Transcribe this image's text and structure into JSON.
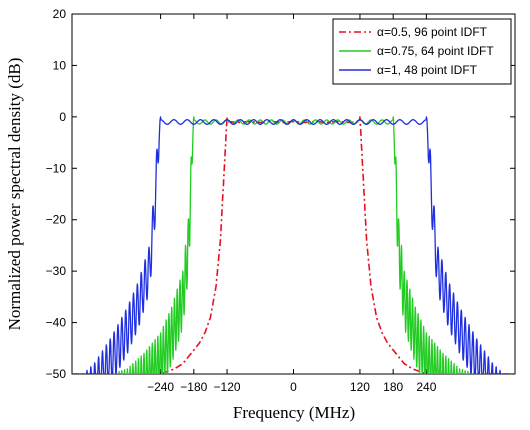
{
  "chart_data": {
    "type": "line",
    "title": "",
    "xlabel": "Frequency (MHz)",
    "ylabel": "Normalized power spectral density (dB)",
    "xlim": [
      -400,
      400
    ],
    "ylim": [
      -50,
      20
    ],
    "x_tick_labels": [
      "-240",
      "-180",
      "-120",
      "0",
      "120",
      "180",
      "240"
    ],
    "x_ticks": [
      -240,
      -180,
      -120,
      0,
      120,
      180,
      240
    ],
    "y_ticks": [
      20,
      10,
      0,
      -10,
      -20,
      -30,
      -40,
      -50
    ],
    "y_tick_labels": [
      "20",
      "10",
      "0",
      "−10",
      "−20",
      "−30",
      "−40",
      "−50"
    ],
    "grid": false,
    "legend_position": "top-right",
    "series": [
      {
        "name": "α=0.5, 96 point IDFT",
        "color": "#e8101f",
        "style": "dashdot",
        "x": [
          -300,
          -270,
          -240,
          -215,
          -200,
          -185,
          -170,
          -160,
          -150,
          -140,
          -132,
          -126,
          -122,
          -120,
          -118,
          0,
          118,
          120,
          122,
          126,
          132,
          140,
          150,
          160,
          170,
          185,
          200,
          215,
          240,
          270,
          300
        ],
        "y": [
          -50,
          -50,
          -50,
          -49,
          -48,
          -46,
          -44,
          -42,
          -39,
          -33,
          -24,
          -12,
          -4,
          0,
          -1,
          -1,
          -1,
          0,
          -4,
          -12,
          -24,
          -33,
          -39,
          -42,
          -44,
          -46,
          -48,
          -49,
          -50,
          -50,
          -50
        ]
      },
      {
        "name": "α=0.75, 64 point IDFT",
        "color": "#22cc22",
        "style": "solid",
        "x": [
          -360,
          -330,
          -300,
          -270,
          -240,
          -220,
          -200,
          -190,
          -185,
          -182,
          -180,
          0,
          180,
          182,
          185,
          190,
          200,
          220,
          240,
          270,
          300,
          330,
          360
        ],
        "y": [
          -50,
          -50,
          -49,
          -46,
          -42,
          -37,
          -30,
          -20,
          -8,
          -2,
          0,
          -1,
          0,
          -2,
          -8,
          -20,
          -30,
          -37,
          -42,
          -46,
          -49,
          -50,
          -50
        ],
        "ripple_db": 0.8,
        "ripple_period_mhz": 20,
        "sidelobe_period_mhz": 5,
        "sidelobe_depth_db": 11
      },
      {
        "name": "α=1, 48 point IDFT",
        "color": "#1f2fe0",
        "style": "solid",
        "x": [
          -400,
          -380,
          -360,
          -330,
          -300,
          -280,
          -260,
          -252,
          -246,
          -242,
          -240,
          0,
          240,
          242,
          246,
          252,
          260,
          280,
          300,
          330,
          360,
          380,
          400
        ],
        "y": [
          -50,
          -50,
          -48,
          -43,
          -37,
          -32,
          -25,
          -15,
          -5,
          -1,
          0,
          -1,
          0,
          -1,
          -5,
          -15,
          -25,
          -32,
          -37,
          -43,
          -48,
          -50,
          -50
        ],
        "ripple_db": 0.9,
        "ripple_period_mhz": 24,
        "sidelobe_period_mhz": 7,
        "sidelobe_depth_db": 9
      }
    ]
  }
}
